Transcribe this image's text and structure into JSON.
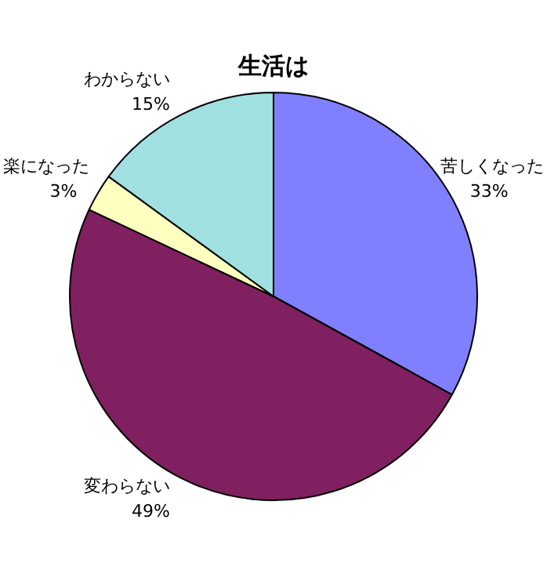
{
  "chart_data": {
    "type": "pie",
    "title": "生活は",
    "categories": [
      "苦しくなった",
      "変わらない",
      "楽になった",
      "わからない"
    ],
    "values": [
      33,
      49,
      3,
      15
    ],
    "colors": [
      "#8080ff",
      "#802060",
      "#ffffc0",
      "#a0e0e0"
    ],
    "value_labels": [
      "33%",
      "49%",
      "3%",
      "15%"
    ],
    "legend": false
  }
}
